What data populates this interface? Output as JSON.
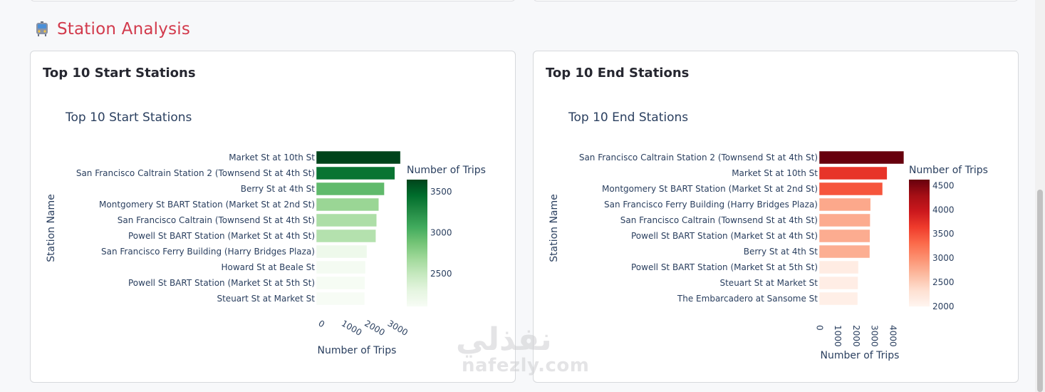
{
  "section": {
    "icon": "tram-icon",
    "title": "Station Analysis"
  },
  "cards": [
    {
      "heading": "Top 10 Start Stations",
      "chart_data": {
        "type": "bar",
        "orientation": "horizontal",
        "title": "Top 10 Start Stations",
        "xlabel": "Number of Trips",
        "ylabel": "Station Name",
        "categories": [
          "Market St at 10th St",
          "San Francisco Caltrain Station 2  (Townsend St at 4th St)",
          "Berry St at 4th St",
          "Montgomery St BART Station (Market St at 2nd St)",
          "San Francisco Caltrain (Townsend St at 4th St)",
          "Powell St BART Station (Market St at 4th St)",
          "San Francisco Ferry Building (Harry Bridges Plaza)",
          "Howard St at Beale St",
          "Powell St BART Station (Market St at 5th St)",
          "Steuart St at Market St"
        ],
        "values": [
          3649,
          3408,
          2952,
          2711,
          2620,
          2584,
          2196,
          2132,
          2112,
          2101
        ],
        "xlim": [
          0,
          3800
        ],
        "xticks": [
          "0",
          "1000",
          "2000",
          "3000"
        ],
        "tick_angle": 30,
        "colorscale": "greens",
        "colorbar": {
          "title": "Number of Trips",
          "range": [
            2101,
            3649
          ],
          "ticks": [
            "2500",
            "3000",
            "3500"
          ],
          "tick_values": [
            2500,
            3000,
            3500
          ]
        },
        "grid": false
      }
    },
    {
      "heading": "Top 10 End Stations",
      "chart_data": {
        "type": "bar",
        "orientation": "horizontal",
        "title": "Top 10 End Stations",
        "xlabel": "Number of Trips",
        "ylabel": "Station Name",
        "categories": [
          "San Francisco Caltrain Station 2  (Townsend St at 4th St)",
          "Market St at 10th St",
          "Montgomery St BART Station (Market St at 2nd St)",
          "San Francisco Ferry Building (Harry Bridges Plaza)",
          "San Francisco Caltrain (Townsend St at 4th St)",
          "Powell St BART Station (Market St at 4th St)",
          "Berry St at 4th St",
          "Powell St BART Station (Market St at 5th St)",
          "Steuart St at Market St",
          "The Embarcadero at Sansome St"
        ],
        "values": [
          4624,
          3709,
          3461,
          2807,
          2784,
          2773,
          2763,
          2141,
          2120,
          2101
        ],
        "xlim": [
          0,
          4900
        ],
        "xticks": [
          "0",
          "1000",
          "2000",
          "3000",
          "4000"
        ],
        "tick_angle": 90,
        "colorscale": "reds",
        "colorbar": {
          "title": "Number of Trips",
          "range": [
            2000,
            4624
          ],
          "ticks": [
            "4500",
            "4000",
            "3500",
            "3000",
            "2500",
            "2000"
          ],
          "tick_values": [
            4500,
            4000,
            3500,
            3000,
            2500,
            2000
          ]
        },
        "grid": false
      }
    }
  ],
  "watermark": {
    "arabic": "نفذلي",
    "latin": "nafezly.com"
  }
}
